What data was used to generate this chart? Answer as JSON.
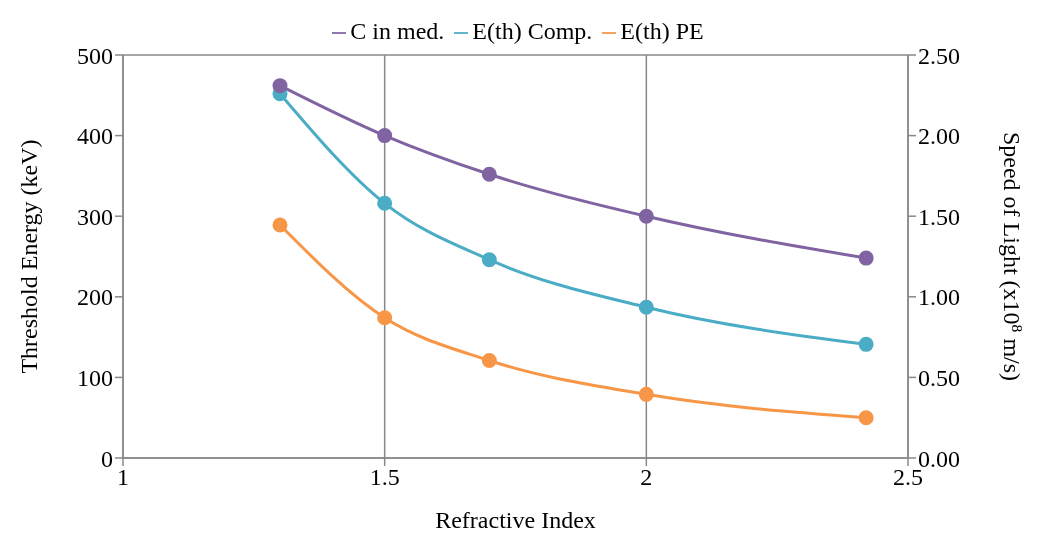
{
  "chart_data": {
    "type": "line",
    "xlabel": "Refractive Index",
    "ylabel": "Threshold Energy (keV)",
    "y2label": "Speed of Light (x10$^{8}$ m/s)",
    "x": [
      1.3,
      1.5,
      1.7,
      2.0,
      2.42
    ],
    "series": [
      {
        "name": "E(th) PE",
        "color": "#f79646",
        "values": [
          289,
          174,
          121,
          79,
          50
        ]
      },
      {
        "name": "E(th) Comp.",
        "color": "#4bacc6",
        "values": [
          452,
          316,
          246,
          187,
          141
        ]
      },
      {
        "name": "C in med.",
        "color": "#8064a2",
        "values": [
          2.31,
          2.0,
          1.76,
          1.5,
          1.24
        ],
        "axis": "y2"
      }
    ],
    "xlim": [
      1,
      2.5
    ],
    "xticks": [
      1,
      1.5,
      2,
      2.5
    ],
    "ylim": [
      0,
      500
    ],
    "yticks": [
      0,
      100,
      200,
      300,
      400,
      500
    ],
    "y2lim": [
      0,
      2.5
    ],
    "y2ticks": [
      {
        "value": 0,
        "label": "0.00"
      },
      {
        "value": 0.5,
        "label": "0.50"
      },
      {
        "value": 1,
        "label": "1.00"
      },
      {
        "value": 1.5,
        "label": "1.50"
      },
      {
        "value": 2,
        "label": "2.00"
      },
      {
        "value": 2.5,
        "label": "2.50"
      }
    ],
    "grid": true,
    "legend": "top",
    "marker": "circle",
    "line_style": "solid"
  }
}
